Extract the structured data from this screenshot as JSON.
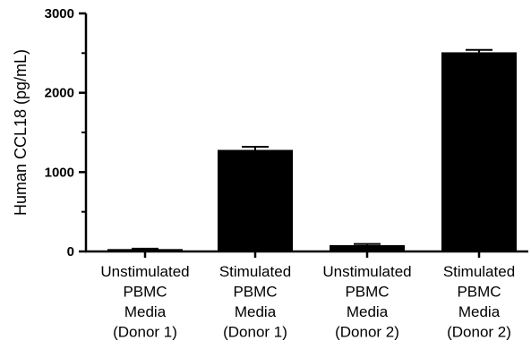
{
  "chart_data": {
    "type": "bar",
    "title": "",
    "xlabel": "",
    "ylabel": "Human CCL18 (pg/mL)",
    "ylim": [
      0,
      3000
    ],
    "yticks": [
      0,
      1000,
      2000,
      3000
    ],
    "categories": [
      [
        "Unstimulated",
        "PBMC",
        "Media",
        "(Donor 1)"
      ],
      [
        "Stimulated",
        "PBMC",
        "Media",
        "(Donor 1)"
      ],
      [
        "Unstimulated",
        "PBMC",
        "Media",
        "(Donor 2)"
      ],
      [
        "Stimulated",
        "PBMC",
        "Media",
        "(Donor 2)"
      ]
    ],
    "values": [
      30,
      1280,
      80,
      2510
    ],
    "errors": [
      5,
      40,
      15,
      30
    ],
    "bar_color": "#000000",
    "grid": false,
    "legend": "none"
  }
}
